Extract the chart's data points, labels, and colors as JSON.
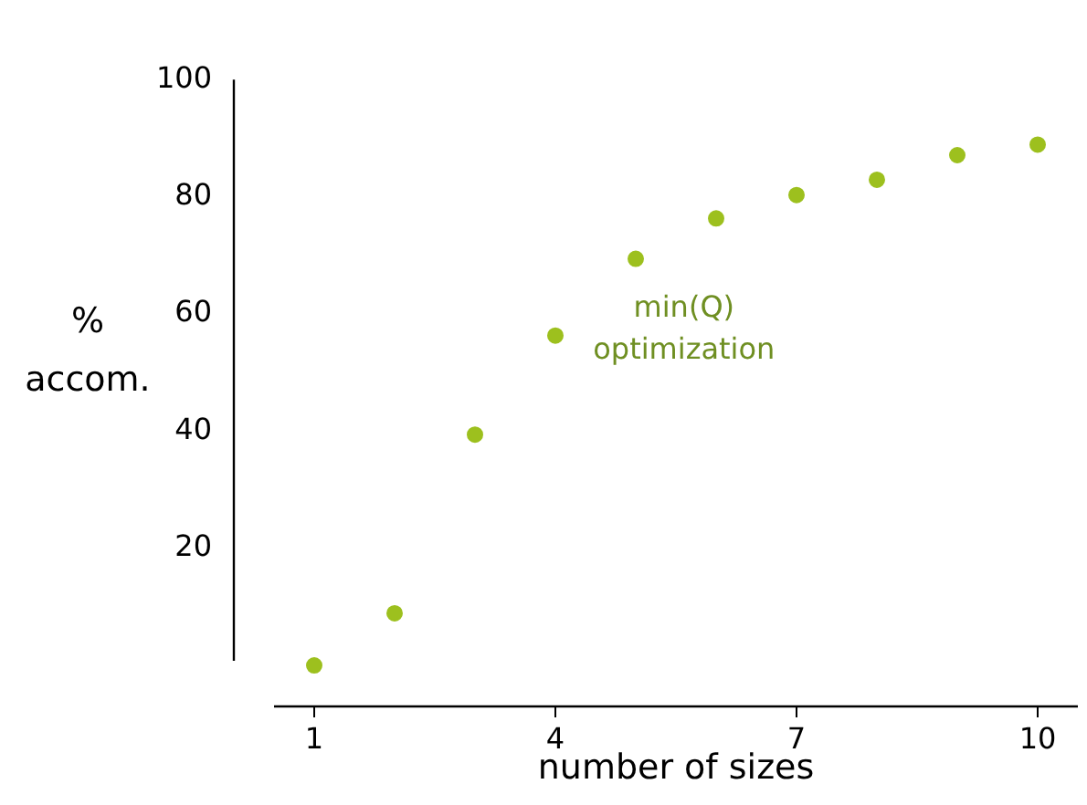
{
  "chart_data": {
    "type": "scatter",
    "xlabel": "number of sizes",
    "ylabel": "% accom.",
    "x": [
      1,
      2,
      3,
      4,
      5,
      6,
      7,
      8,
      9,
      10
    ],
    "series": [
      {
        "color": "#9dc01e",
        "values": [
          0,
          8.9,
          39.4,
          56.3,
          69.4,
          76.3,
          80.3,
          82.9,
          87.1,
          88.9
        ]
      }
    ],
    "annotations": [
      "min(Q) optimization"
    ],
    "xlim": [
      0.5,
      10.5
    ],
    "xticks": [
      1,
      4,
      7,
      10
    ],
    "ylim": [
      -7,
      100
    ],
    "yticks": [
      20,
      40,
      60,
      80,
      100
    ],
    "grid": false,
    "legend": false,
    "marker": "circle"
  }
}
